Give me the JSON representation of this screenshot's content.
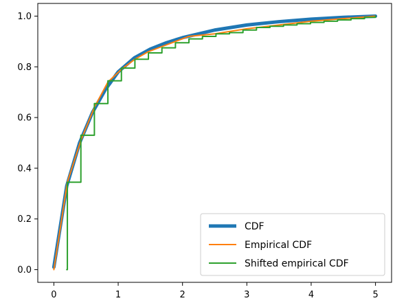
{
  "chart_data": {
    "type": "line",
    "title": "",
    "xlabel": "",
    "ylabel": "",
    "xlim": [
      -0.25,
      5.25
    ],
    "ylim": [
      -0.05,
      1.05
    ],
    "xticks": [
      "0",
      "1",
      "2",
      "3",
      "4",
      "5"
    ],
    "yticks": [
      "0.0",
      "0.2",
      "0.4",
      "0.6",
      "0.8",
      "1.0"
    ],
    "grid": false,
    "legend_position": "lower-right",
    "series": [
      {
        "name": "CDF",
        "color": "#1f77b4",
        "style": "line",
        "x": [
          0.0,
          0.2,
          0.4,
          0.6,
          0.8,
          1.0,
          1.25,
          1.5,
          1.75,
          2.0,
          2.5,
          3.0,
          3.5,
          4.0,
          4.5,
          5.0
        ],
        "y": [
          0.01,
          0.33,
          0.5,
          0.62,
          0.71,
          0.78,
          0.835,
          0.87,
          0.895,
          0.915,
          0.945,
          0.965,
          0.978,
          0.988,
          0.995,
          1.0
        ]
      },
      {
        "name": "Empirical CDF",
        "color": "#ff7f0e",
        "style": "line",
        "x": [
          0.0,
          0.21,
          0.42,
          0.63,
          0.84,
          1.05,
          1.26,
          1.47,
          1.68,
          1.89,
          2.1,
          2.5,
          3.0,
          3.5,
          4.0,
          4.5,
          5.0
        ],
        "y": [
          0.0,
          0.345,
          0.51,
          0.64,
          0.74,
          0.79,
          0.83,
          0.86,
          0.88,
          0.9,
          0.92,
          0.93,
          0.95,
          0.965,
          0.98,
          0.99,
          1.0
        ]
      },
      {
        "name": "Shifted empirical CDF",
        "color": "#2ca02c",
        "style": "step",
        "x": [
          0.2,
          0.21,
          0.42,
          0.63,
          0.84,
          1.05,
          1.26,
          1.47,
          1.68,
          1.89,
          2.1,
          2.31,
          2.52,
          2.73,
          2.94,
          3.15,
          3.36,
          3.57,
          3.78,
          3.99,
          4.2,
          4.41,
          4.62,
          4.83,
          5.0
        ],
        "y": [
          0.0,
          0.345,
          0.53,
          0.655,
          0.745,
          0.795,
          0.83,
          0.855,
          0.875,
          0.895,
          0.91,
          0.92,
          0.93,
          0.935,
          0.945,
          0.955,
          0.96,
          0.965,
          0.97,
          0.975,
          0.98,
          0.985,
          0.99,
          0.995,
          1.0
        ]
      }
    ]
  }
}
